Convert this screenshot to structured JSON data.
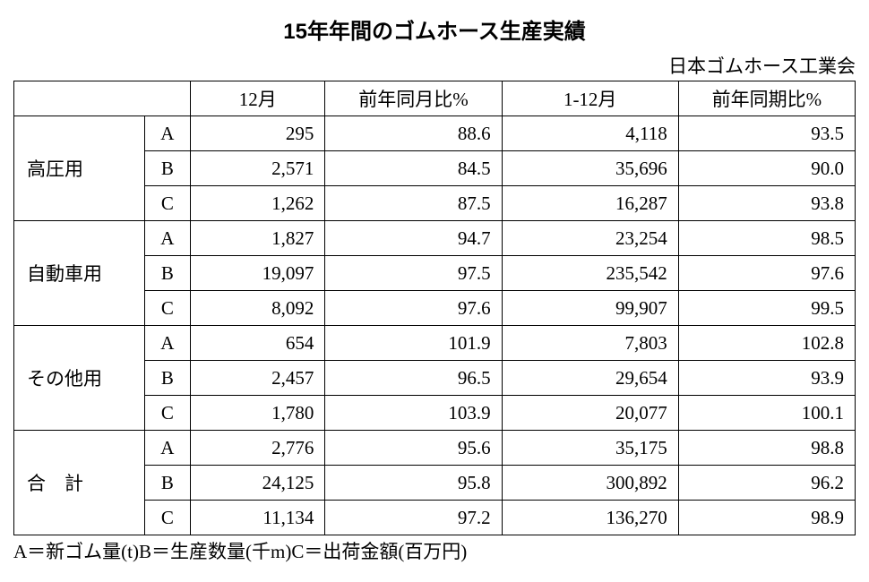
{
  "title": "15年年間のゴムホース生産実績",
  "source": "日本ゴムホース工業会",
  "columns": [
    "12月",
    "前年同月比%",
    "1-12月",
    "前年同期比%"
  ],
  "categories": [
    {
      "label": "高圧用",
      "spaced": false,
      "rows": [
        {
          "sub": "A",
          "cells": [
            "295",
            "88.6",
            "4,118",
            "93.5"
          ]
        },
        {
          "sub": "B",
          "cells": [
            "2,571",
            "84.5",
            "35,696",
            "90.0"
          ]
        },
        {
          "sub": "C",
          "cells": [
            "1,262",
            "87.5",
            "16,287",
            "93.8"
          ]
        }
      ]
    },
    {
      "label": "自動車用",
      "spaced": false,
      "rows": [
        {
          "sub": "A",
          "cells": [
            "1,827",
            "94.7",
            "23,254",
            "98.5"
          ]
        },
        {
          "sub": "B",
          "cells": [
            "19,097",
            "97.5",
            "235,542",
            "97.6"
          ]
        },
        {
          "sub": "C",
          "cells": [
            "8,092",
            "97.6",
            "99,907",
            "99.5"
          ]
        }
      ]
    },
    {
      "label": "その他用",
      "spaced": false,
      "rows": [
        {
          "sub": "A",
          "cells": [
            "654",
            "101.9",
            "7,803",
            "102.8"
          ]
        },
        {
          "sub": "B",
          "cells": [
            "2,457",
            "96.5",
            "29,654",
            "93.9"
          ]
        },
        {
          "sub": "C",
          "cells": [
            "1,780",
            "103.9",
            "20,077",
            "100.1"
          ]
        }
      ]
    },
    {
      "label": "合　計",
      "spaced": true,
      "rows": [
        {
          "sub": "A",
          "cells": [
            "2,776",
            "95.6",
            "35,175",
            "98.8"
          ]
        },
        {
          "sub": "B",
          "cells": [
            "24,125",
            "95.8",
            "300,892",
            "96.2"
          ]
        },
        {
          "sub": "C",
          "cells": [
            "11,134",
            "97.2",
            "136,270",
            "98.9"
          ]
        }
      ]
    }
  ],
  "footnote": "A＝新ゴム量(t)B＝生産数量(千m)C＝出荷金額(百万円)"
}
